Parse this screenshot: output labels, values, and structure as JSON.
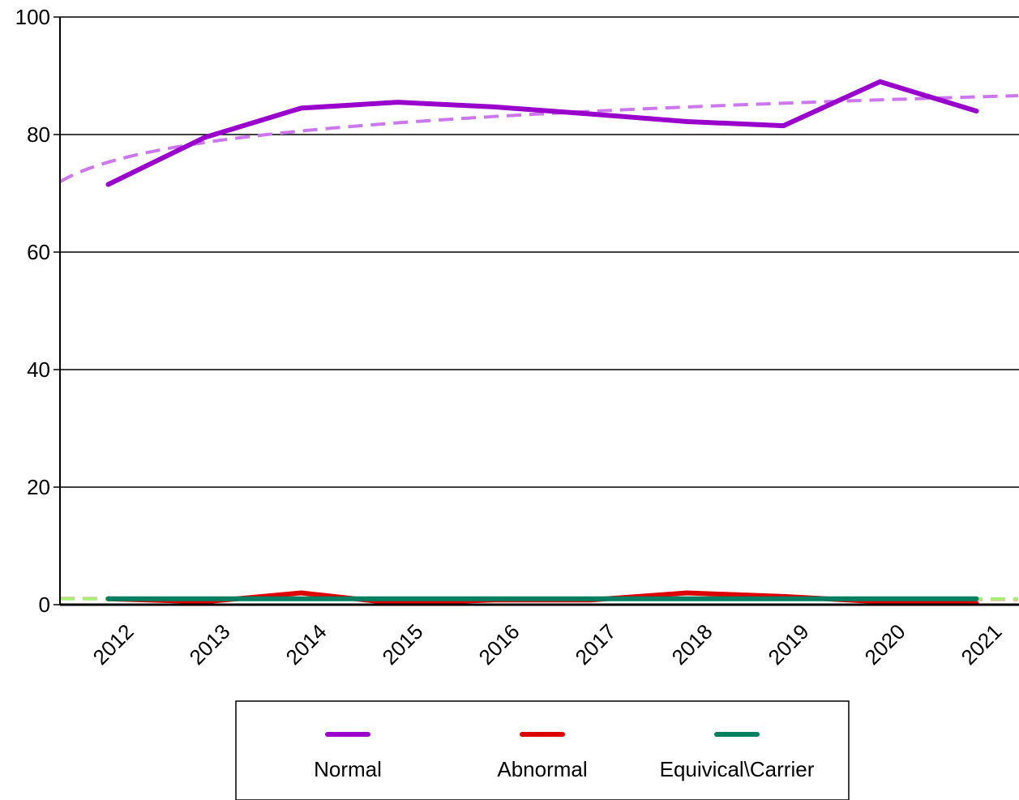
{
  "chart_data": {
    "type": "line",
    "title": "",
    "xlabel": "",
    "ylabel": "",
    "categories": [
      "2012",
      "2013",
      "2014",
      "2015",
      "2016",
      "2017",
      "2018",
      "2019",
      "2020",
      "2021"
    ],
    "ylim": [
      0,
      100
    ],
    "yticks": [
      "0",
      "20",
      "40",
      "60",
      "80",
      "100"
    ],
    "grid": "horizontal",
    "legend_position": "bottom",
    "series": [
      {
        "name": "Normal",
        "color": "#9900cc",
        "values": [
          71.5,
          79.5,
          84.5,
          85.5,
          84.7,
          83.5,
          82.2,
          81.5,
          89.0,
          84.0
        ]
      },
      {
        "name": "Abnormal",
        "color": "#dd0000",
        "values": [
          1.0,
          0.5,
          2.0,
          0.2,
          0.8,
          0.8,
          2.0,
          1.4,
          0.5,
          0.2
        ]
      },
      {
        "name": "Equivical\\Carrier",
        "color": "#008060",
        "values": [
          1.0,
          1.0,
          1.0,
          1.0,
          1.0,
          1.0,
          1.0,
          1.0,
          1.0,
          1.0
        ]
      }
    ],
    "trendlines": [
      {
        "of": "Normal",
        "color": "#cc77ee",
        "style": "dashed",
        "kind": "logarithmic"
      },
      {
        "of": "Abnormal",
        "color": "#ee9999",
        "style": "dashed",
        "kind": "logarithmic"
      },
      {
        "of": "Equivical\\Carrier",
        "color": "#aaee77",
        "style": "dashed",
        "kind": "logarithmic"
      }
    ]
  }
}
